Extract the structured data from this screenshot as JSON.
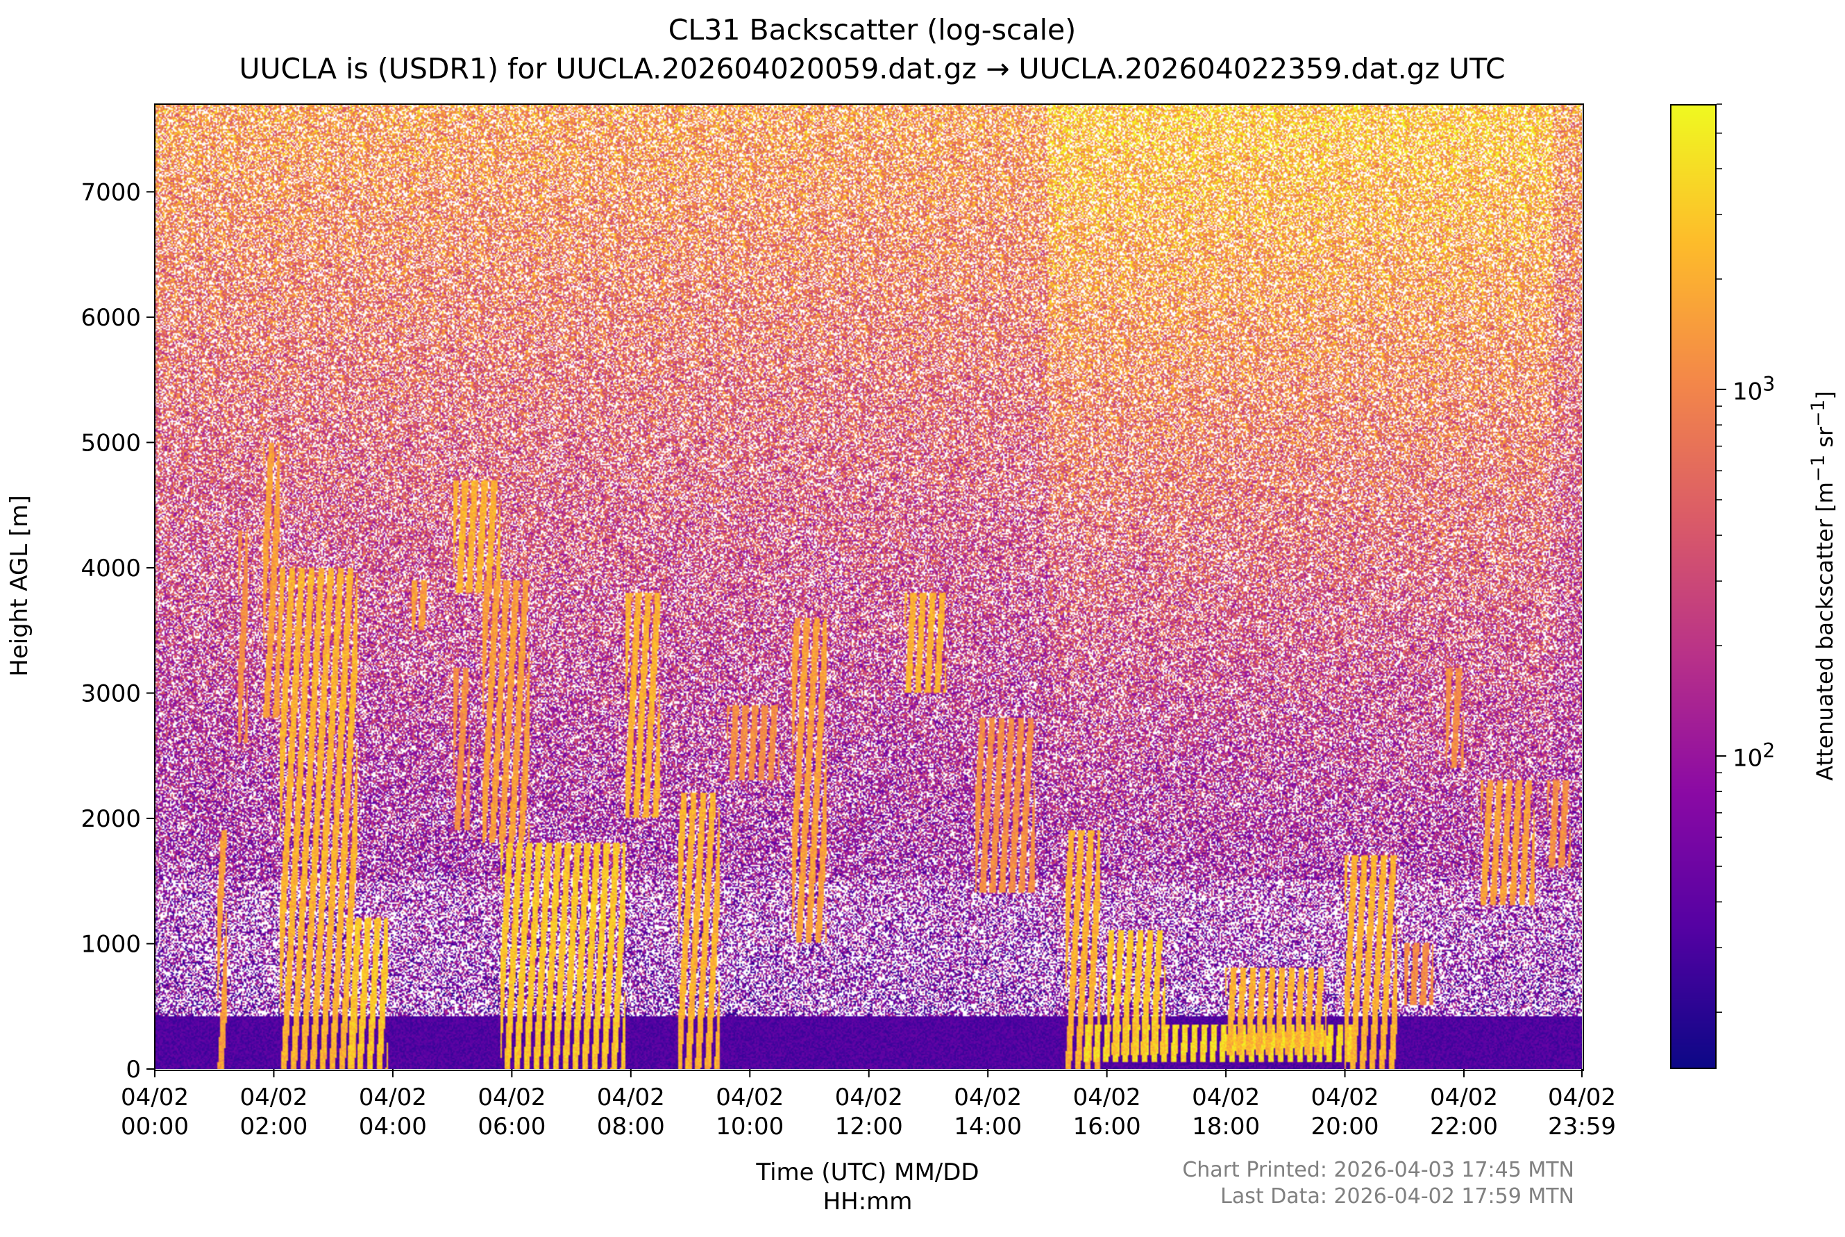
{
  "chart_data": {
    "type": "heatmap",
    "title": "CL31 Backscatter (log-scale)",
    "subtitle": "UUCLA is (USDR1) for UUCLA.202604020059.dat.gz → UUCLA.202604022359.dat.gz UTC",
    "xlabel_line1": "Time (UTC) MM/DD",
    "xlabel_line2": "HH:mm",
    "ylabel": "Height AGL [m]",
    "x_ticks": [
      {
        "date": "04/02",
        "time": "00:00",
        "hour": 0
      },
      {
        "date": "04/02",
        "time": "02:00",
        "hour": 2
      },
      {
        "date": "04/02",
        "time": "04:00",
        "hour": 4
      },
      {
        "date": "04/02",
        "time": "06:00",
        "hour": 6
      },
      {
        "date": "04/02",
        "time": "08:00",
        "hour": 8
      },
      {
        "date": "04/02",
        "time": "10:00",
        "hour": 10
      },
      {
        "date": "04/02",
        "time": "12:00",
        "hour": 12
      },
      {
        "date": "04/02",
        "time": "14:00",
        "hour": 14
      },
      {
        "date": "04/02",
        "time": "16:00",
        "hour": 16
      },
      {
        "date": "04/02",
        "time": "18:00",
        "hour": 18
      },
      {
        "date": "04/02",
        "time": "20:00",
        "hour": 20
      },
      {
        "date": "04/02",
        "time": "22:00",
        "hour": 22
      },
      {
        "date": "04/02",
        "time": "23:59",
        "hour": 23.983
      }
    ],
    "xlim_hours": [
      0,
      23.983
    ],
    "y_ticks": [
      0,
      1000,
      2000,
      3000,
      4000,
      5000,
      6000,
      7000
    ],
    "ylim": [
      0,
      7700
    ],
    "colorbar": {
      "label": "Attenuated backscatter [m",
      "label_sup1": "−1",
      "label_mid": " sr",
      "label_sup2": "−1",
      "label_end": "]",
      "scale": "log",
      "range": [
        14,
        6000
      ],
      "major_ticks": [
        {
          "base": "10",
          "exp": "2",
          "value": 100
        },
        {
          "base": "10",
          "exp": "3",
          "value": 1000
        }
      ],
      "colormap": "plasma"
    },
    "cloud_layers": [
      {
        "t0": 1.05,
        "t1": 1.2,
        "z0": 0,
        "z1": 1900,
        "level": 0.85
      },
      {
        "t0": 1.4,
        "t1": 1.55,
        "z0": 2600,
        "z1": 4300,
        "level": 0.8
      },
      {
        "t0": 1.8,
        "t1": 2.1,
        "z0": 2800,
        "z1": 5000,
        "level": 0.85
      },
      {
        "t0": 2.1,
        "t1": 3.4,
        "z0": 0,
        "z1": 4000,
        "level": 0.9
      },
      {
        "t0": 3.2,
        "t1": 3.9,
        "z0": 0,
        "z1": 1200,
        "level": 0.95
      },
      {
        "t0": 4.3,
        "t1": 4.6,
        "z0": 3500,
        "z1": 3900,
        "level": 0.85
      },
      {
        "t0": 5.0,
        "t1": 5.3,
        "z0": 1900,
        "z1": 3200,
        "level": 0.8
      },
      {
        "t0": 5.0,
        "t1": 5.8,
        "z0": 3800,
        "z1": 4700,
        "level": 0.9
      },
      {
        "t0": 5.5,
        "t1": 6.3,
        "z0": 1800,
        "z1": 3900,
        "level": 0.85
      },
      {
        "t0": 5.8,
        "t1": 7.9,
        "z0": 0,
        "z1": 1800,
        "level": 0.95
      },
      {
        "t0": 7.9,
        "t1": 8.5,
        "z0": 2000,
        "z1": 3800,
        "level": 0.9
      },
      {
        "t0": 8.8,
        "t1": 9.5,
        "z0": 0,
        "z1": 2200,
        "level": 0.9
      },
      {
        "t0": 9.6,
        "t1": 10.5,
        "z0": 2300,
        "z1": 2900,
        "level": 0.8
      },
      {
        "t0": 10.7,
        "t1": 11.3,
        "z0": 1000,
        "z1": 3600,
        "level": 0.85
      },
      {
        "t0": 12.6,
        "t1": 13.3,
        "z0": 3000,
        "z1": 3800,
        "level": 0.9
      },
      {
        "t0": 13.8,
        "t1": 14.8,
        "z0": 1400,
        "z1": 2800,
        "level": 0.8
      },
      {
        "t0": 15.3,
        "t1": 15.9,
        "z0": 0,
        "z1": 1900,
        "level": 0.9
      },
      {
        "t0": 15.6,
        "t1": 20.2,
        "z0": 50,
        "z1": 350,
        "level": 1.0
      },
      {
        "t0": 16.0,
        "t1": 17.0,
        "z0": 100,
        "z1": 1100,
        "level": 0.95
      },
      {
        "t0": 18.0,
        "t1": 19.7,
        "z0": 100,
        "z1": 800,
        "level": 0.9
      },
      {
        "t0": 20.0,
        "t1": 20.9,
        "z0": 0,
        "z1": 1700,
        "level": 0.9
      },
      {
        "t0": 21.0,
        "t1": 21.5,
        "z0": 500,
        "z1": 1000,
        "level": 0.8
      },
      {
        "t0": 21.7,
        "t1": 22.0,
        "z0": 2400,
        "z1": 3200,
        "level": 0.8
      },
      {
        "t0": 22.3,
        "t1": 23.2,
        "z0": 1300,
        "z1": 2300,
        "level": 0.85
      },
      {
        "t0": 23.4,
        "t1": 23.8,
        "z0": 1600,
        "z1": 2300,
        "level": 0.8
      }
    ]
  },
  "footer": {
    "printed": "Chart Printed: 2026-04-03 17:45 MTN",
    "last_data": "Last Data: 2026-04-02 17:59 MTN"
  }
}
